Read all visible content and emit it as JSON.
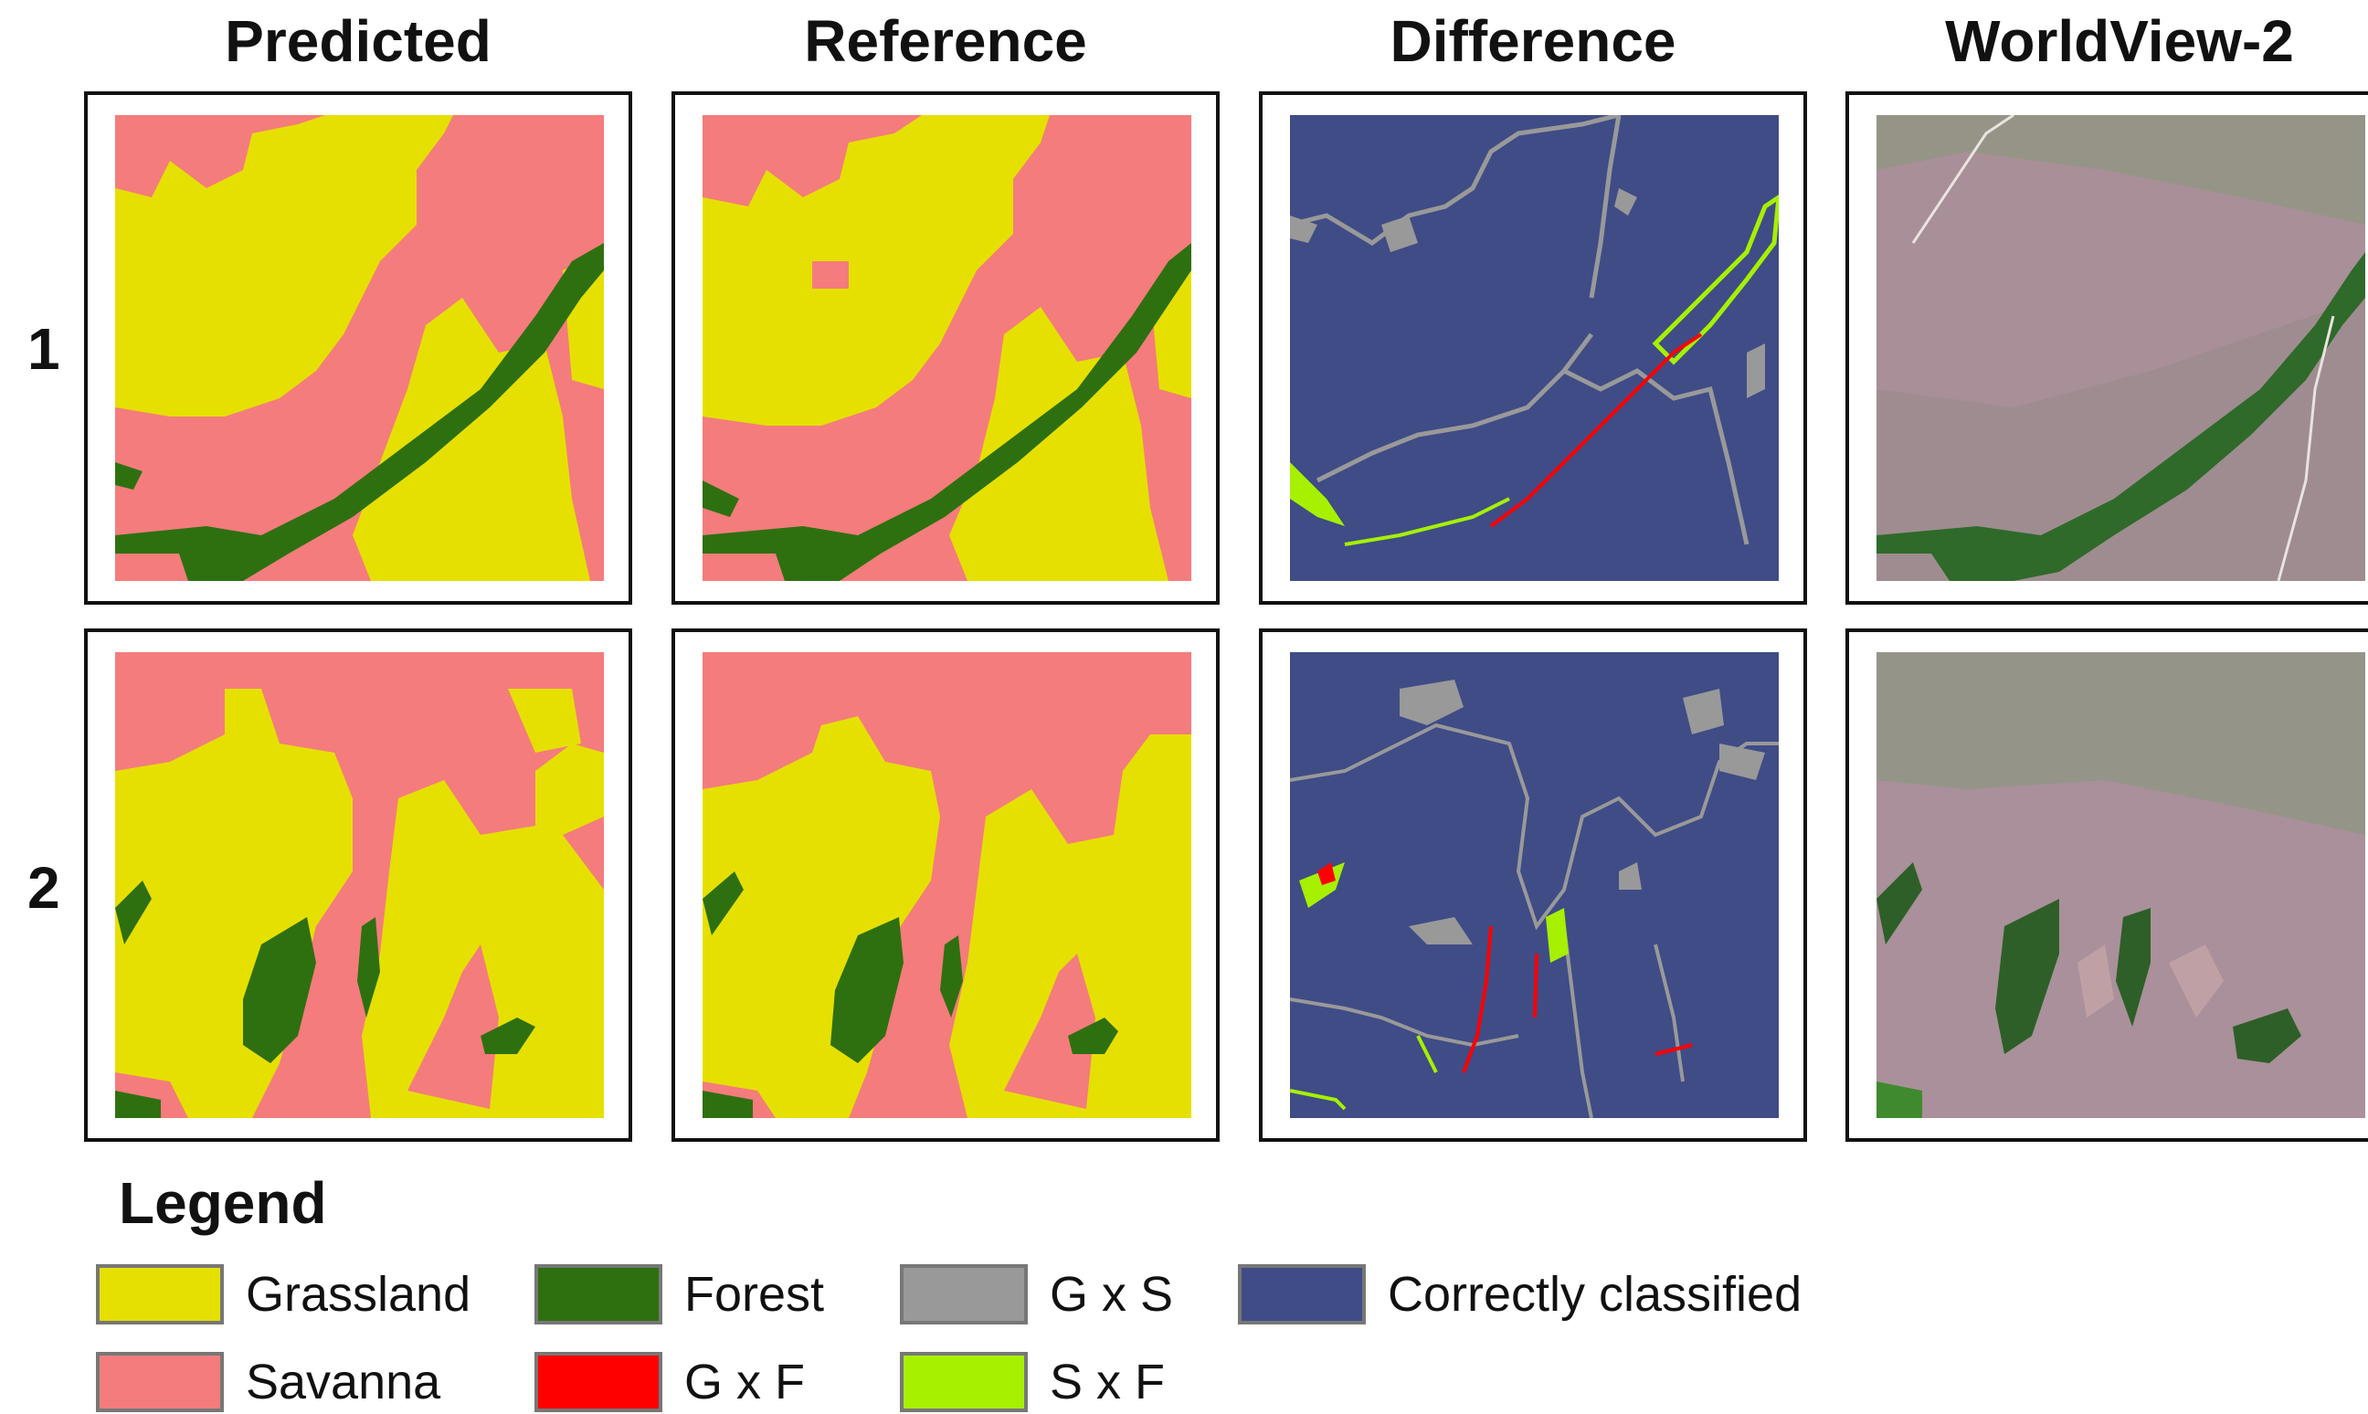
{
  "columns": [
    "Predicted",
    "Reference",
    "Difference",
    "WorldView-2"
  ],
  "rows": [
    "1",
    "2"
  ],
  "legend": {
    "title": "Legend",
    "items": [
      {
        "label": "Grassland",
        "color": "#e6e000"
      },
      {
        "label": "Forest",
        "color": "#2e7010"
      },
      {
        "label": "G x S",
        "color": "#999999"
      },
      {
        "label": "Correctly classified",
        "color": "#3f4c86"
      },
      {
        "label": "Savanna",
        "color": "#f47c7c"
      },
      {
        "label": "G x F",
        "color": "#ff0000"
      },
      {
        "label": "S x F",
        "color": "#a6f000"
      }
    ]
  }
}
